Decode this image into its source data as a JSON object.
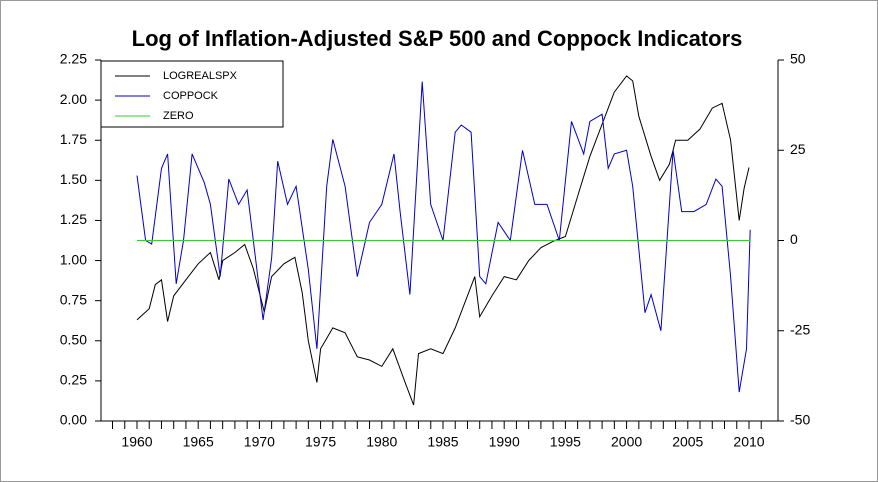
{
  "chart_data": {
    "type": "line",
    "title": "Log of Inflation-Adjusted S&P 500 and Coppock Indicators",
    "xlim": [
      1957.06,
      2012.37
    ],
    "xticks": [
      1960,
      1965,
      1970,
      1975,
      1980,
      1985,
      1990,
      1995,
      2000,
      2005,
      2010
    ],
    "xminorticks": [
      1958,
      1959,
      1961,
      1962,
      1963,
      1964,
      1966,
      1967,
      1968,
      1969,
      1971,
      1972,
      1973,
      1974,
      1976,
      1977,
      1978,
      1979,
      1981,
      1982,
      1983,
      1984,
      1986,
      1987,
      1988,
      1989,
      1991,
      1992,
      1993,
      1994,
      1996,
      1997,
      1998,
      1999,
      2001,
      2002,
      2003,
      2004,
      2006,
      2007,
      2008,
      2009,
      2011
    ],
    "ylim": [
      0,
      2.25
    ],
    "yticks": [
      {
        "value": 0,
        "label": "0.00"
      },
      {
        "value": 0.25,
        "label": "0.25"
      },
      {
        "value": 0.5,
        "label": "0.50"
      },
      {
        "value": 0.75,
        "label": "0.75"
      },
      {
        "value": 1,
        "label": "1.00"
      },
      {
        "value": 1.25,
        "label": "1.25"
      },
      {
        "value": 1.5,
        "label": "1.50"
      },
      {
        "value": 1.75,
        "label": "1.75"
      },
      {
        "value": 2,
        "label": "2.00"
      },
      {
        "value": 2.25,
        "label": "2.25"
      }
    ],
    "y2lim": [
      -50,
      50
    ],
    "y2ticks": [
      50,
      25,
      0,
      -25,
      -50
    ],
    "legend": "upper left",
    "series": [
      {
        "name": "LOGREALSPX",
        "color": "#000000",
        "axis": "y",
        "x": [
          1960,
          1961,
          1961.5,
          1962,
          1962.5,
          1963,
          1964,
          1965,
          1966,
          1966.7,
          1967,
          1968,
          1968.8,
          1969.5,
          1970.4,
          1971,
          1972,
          1972.9,
          1973.5,
          1974,
          1974.7,
          1975,
          1976,
          1977,
          1978,
          1979,
          1980,
          1980.9,
          1982,
          1982.6,
          1983,
          1984,
          1985,
          1986,
          1987.6,
          1988,
          1989,
          1990,
          1991,
          1992,
          1993,
          1994,
          1995,
          1996,
          1997,
          1998,
          1999,
          2000,
          2000.5,
          2001,
          2002,
          2002.7,
          2003.5,
          2004,
          2005,
          2006,
          2007,
          2007.8,
          2008.5,
          2009.2,
          2009.6,
          2010
        ],
        "values": [
          0.63,
          0.7,
          0.85,
          0.88,
          0.62,
          0.78,
          0.88,
          0.98,
          1.05,
          0.88,
          1.0,
          1.05,
          1.1,
          0.95,
          0.68,
          0.9,
          0.98,
          1.02,
          0.8,
          0.5,
          0.24,
          0.45,
          0.58,
          0.55,
          0.4,
          0.38,
          0.34,
          0.45,
          0.22,
          0.1,
          0.42,
          0.45,
          0.42,
          0.58,
          0.9,
          0.65,
          0.78,
          0.9,
          0.88,
          1.0,
          1.08,
          1.12,
          1.15,
          1.4,
          1.65,
          1.85,
          2.05,
          2.15,
          2.12,
          1.9,
          1.65,
          1.5,
          1.6,
          1.75,
          1.75,
          1.82,
          1.95,
          1.98,
          1.75,
          1.25,
          1.45,
          1.58
        ]
      },
      {
        "name": "COPPOCK",
        "color": "#0000cc",
        "axis": "y2",
        "x": [
          1960,
          1960.7,
          1961.2,
          1962,
          1962.5,
          1963.2,
          1963.8,
          1964.5,
          1965.5,
          1966,
          1966.8,
          1967.5,
          1968.3,
          1969,
          1970.3,
          1971,
          1971.5,
          1972.3,
          1973,
          1974,
          1974.7,
          1975.5,
          1976,
          1977,
          1978,
          1979,
          1980,
          1981,
          1981.5,
          1982.3,
          1983.3,
          1984,
          1985,
          1986,
          1986.5,
          1987.3,
          1988,
          1988.5,
          1989.5,
          1990.5,
          1991.5,
          1992.5,
          1993.5,
          1994.5,
          1995.5,
          1996.5,
          1997,
          1998,
          1998.5,
          1999,
          2000,
          2000.5,
          2001.5,
          2002,
          2002.8,
          2003.8,
          2004.5,
          2005.5,
          2006.5,
          2007.3,
          2007.8,
          2008.5,
          2009.2,
          2009.8,
          2010.1
        ],
        "values": [
          18,
          0,
          -1,
          20,
          24,
          -12,
          0,
          24,
          16,
          10,
          -10,
          17,
          10,
          14,
          -22,
          -5,
          22,
          10,
          15,
          -8,
          -30,
          15,
          28,
          15,
          -10,
          5,
          10,
          24,
          8,
          -15,
          44,
          10,
          0,
          30,
          32,
          30,
          -10,
          -12,
          5,
          0,
          25,
          10,
          10,
          0,
          33,
          24,
          33,
          35,
          20,
          24,
          25,
          15,
          -20,
          -15,
          -25,
          25,
          8,
          8,
          10,
          17,
          15,
          -10,
          -42,
          -30,
          3
        ]
      },
      {
        "name": "ZERO",
        "color": "#33cc33",
        "axis": "y2",
        "x": [
          1960,
          2010.1
        ],
        "values": [
          0,
          0
        ]
      }
    ]
  }
}
